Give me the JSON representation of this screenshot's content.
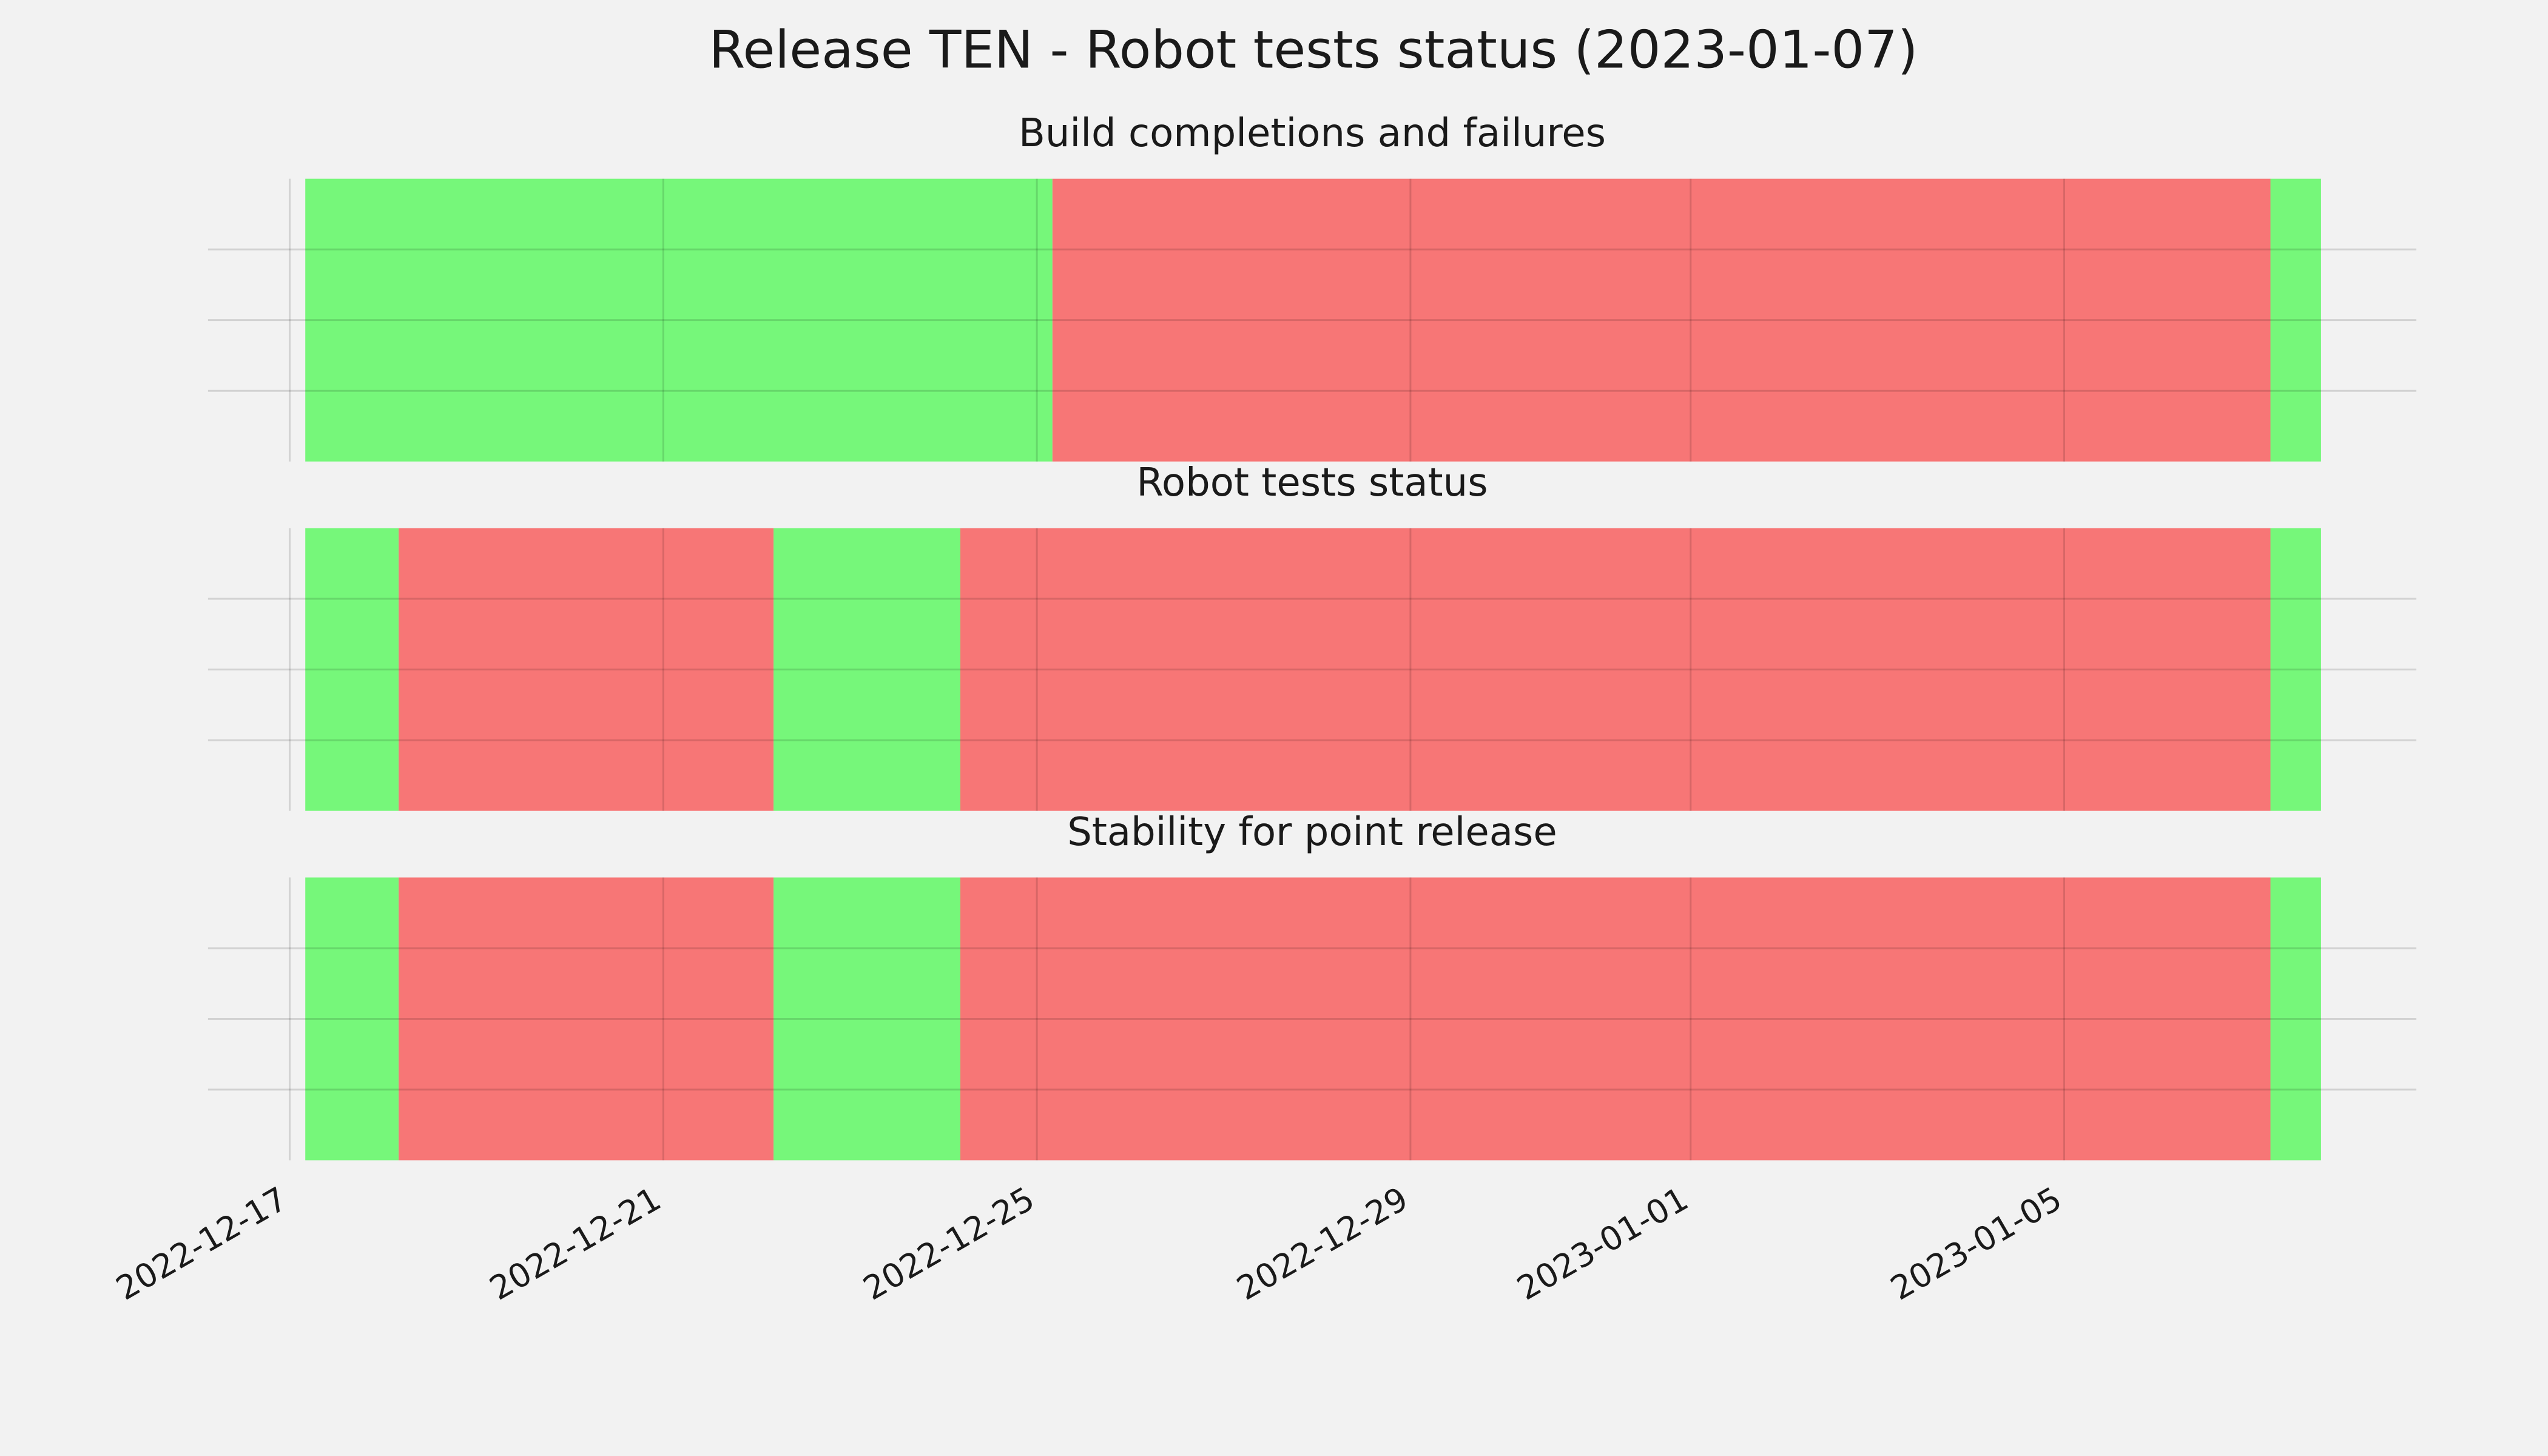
{
  "title": "Release TEN - Robot tests status (2023-01-07)",
  "chart_data": [
    {
      "type": "timeline",
      "title": "Build completions and failures",
      "xlim": [
        "2022-12-16T03:00",
        "2023-01-08T18:30"
      ],
      "xticks": [
        "2022-12-17",
        "2022-12-21",
        "2022-12-25",
        "2022-12-29",
        "2023-01-01",
        "2023-01-05"
      ],
      "ylim": [
        0,
        1
      ],
      "yticks": [
        0.25,
        0.5,
        0.75
      ],
      "grid": true,
      "segments": [
        {
          "start": "2022-12-17T04:00",
          "end": "2022-12-25T04:00",
          "color": "#76f77a"
        },
        {
          "start": "2022-12-25T04:00",
          "end": "2023-01-07T05:00",
          "color": "#f77676"
        },
        {
          "start": "2023-01-07T05:00",
          "end": "2023-01-07T18:00",
          "color": "#76f77a"
        }
      ]
    },
    {
      "type": "timeline",
      "title": "Robot tests status",
      "xlim": [
        "2022-12-16T03:00",
        "2023-01-08T18:30"
      ],
      "xticks": [
        "2022-12-17",
        "2022-12-21",
        "2022-12-25",
        "2022-12-29",
        "2023-01-01",
        "2023-01-05"
      ],
      "ylim": [
        0,
        1
      ],
      "yticks": [
        0.25,
        0.5,
        0.75
      ],
      "grid": true,
      "segments": [
        {
          "start": "2022-12-17T04:00",
          "end": "2022-12-18T04:00",
          "color": "#76f77a"
        },
        {
          "start": "2022-12-18T04:00",
          "end": "2022-12-22T04:20",
          "color": "#f77676"
        },
        {
          "start": "2022-12-22T04:20",
          "end": "2022-12-24T04:20",
          "color": "#76f77a"
        },
        {
          "start": "2022-12-24T04:20",
          "end": "2023-01-07T05:00",
          "color": "#f77676"
        },
        {
          "start": "2023-01-07T05:00",
          "end": "2023-01-07T18:00",
          "color": "#76f77a"
        }
      ]
    },
    {
      "type": "timeline",
      "title": "Stability for point release",
      "xlim": [
        "2022-12-16T03:00",
        "2023-01-08T18:30"
      ],
      "xticks": [
        "2022-12-17",
        "2022-12-21",
        "2022-12-25",
        "2022-12-29",
        "2023-01-01",
        "2023-01-05"
      ],
      "ylim": [
        0,
        1
      ],
      "yticks": [
        0.25,
        0.5,
        0.75
      ],
      "grid": true,
      "segments": [
        {
          "start": "2022-12-17T04:00",
          "end": "2022-12-18T04:00",
          "color": "#76f77a"
        },
        {
          "start": "2022-12-18T04:00",
          "end": "2022-12-22T04:20",
          "color": "#f77676"
        },
        {
          "start": "2022-12-22T04:20",
          "end": "2022-12-24T04:20",
          "color": "#76f77a"
        },
        {
          "start": "2022-12-24T04:20",
          "end": "2023-01-07T05:00",
          "color": "#f77676"
        },
        {
          "start": "2023-01-07T05:00",
          "end": "2023-01-07T18:00",
          "color": "#76f77a"
        }
      ]
    }
  ]
}
